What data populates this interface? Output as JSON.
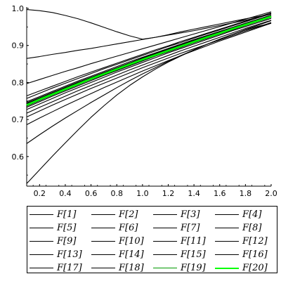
{
  "chart_data": {
    "type": "line",
    "xlim": [
      0.1,
      2.0
    ],
    "ylim": [
      0.52,
      1.0
    ],
    "xticks": [
      "0.2",
      "0.4",
      "0.6",
      "0.8",
      "1.0",
      "1.2",
      "1.4",
      "1.6",
      "1.8",
      "2.0"
    ],
    "yticks": [
      "0.6",
      "0.7",
      "0.8",
      "0.9",
      "1.0"
    ],
    "x": [
      0.1,
      0.2,
      0.3,
      0.4,
      0.5,
      0.6,
      0.7,
      0.8,
      0.9,
      1.0,
      1.1,
      1.2,
      1.3,
      1.4,
      1.5,
      1.6,
      1.7,
      1.8,
      1.9,
      2.0
    ],
    "legend_position": "bottom",
    "series": [
      {
        "name": "F[1]",
        "color": "#000000",
        "values": [
          0.997,
          0.994,
          0.989,
          0.981,
          0.972,
          0.961,
          0.949,
          0.937,
          0.926,
          0.917,
          0.922,
          0.929,
          0.937,
          0.944,
          0.951,
          0.958,
          0.965,
          0.972,
          0.978,
          0.985
        ]
      },
      {
        "name": "F[2]",
        "color": "#000000",
        "values": [
          0.865,
          0.87,
          0.876,
          0.881,
          0.887,
          0.892,
          0.898,
          0.904,
          0.91,
          0.916,
          0.922,
          0.928,
          0.934,
          0.94,
          0.947,
          0.954,
          0.961,
          0.968,
          0.976,
          0.985
        ]
      },
      {
        "name": "F[3]",
        "color": "#000000",
        "values": [
          0.527,
          0.564,
          0.601,
          0.637,
          0.672,
          0.706,
          0.737,
          0.766,
          0.792,
          0.815,
          0.836,
          0.855,
          0.872,
          0.888,
          0.903,
          0.917,
          0.93,
          0.942,
          0.952,
          0.96
        ]
      },
      {
        "name": "F[4]",
        "color": "#000000",
        "values": [
          0.635,
          0.659,
          0.682,
          0.704,
          0.725,
          0.746,
          0.766,
          0.786,
          0.805,
          0.823,
          0.84,
          0.857,
          0.873,
          0.888,
          0.903,
          0.917,
          0.93,
          0.943,
          0.955,
          0.967
        ]
      },
      {
        "name": "F[5]",
        "color": "#000000",
        "values": [
          0.686,
          0.704,
          0.721,
          0.738,
          0.754,
          0.77,
          0.786,
          0.801,
          0.816,
          0.831,
          0.845,
          0.859,
          0.873,
          0.886,
          0.899,
          0.912,
          0.924,
          0.936,
          0.948,
          0.96
        ]
      },
      {
        "name": "F[6]",
        "color": "#000000",
        "values": [
          0.707,
          0.723,
          0.739,
          0.754,
          0.769,
          0.784,
          0.798,
          0.812,
          0.826,
          0.84,
          0.853,
          0.866,
          0.879,
          0.891,
          0.903,
          0.915,
          0.927,
          0.939,
          0.95,
          0.962
        ]
      },
      {
        "name": "F[7]",
        "color": "#000000",
        "values": [
          0.717,
          0.733,
          0.748,
          0.763,
          0.778,
          0.792,
          0.806,
          0.82,
          0.834,
          0.847,
          0.86,
          0.873,
          0.886,
          0.898,
          0.91,
          0.922,
          0.934,
          0.946,
          0.957,
          0.968
        ]
      },
      {
        "name": "F[8]",
        "color": "#000000",
        "values": [
          0.727,
          0.742,
          0.757,
          0.772,
          0.786,
          0.8,
          0.814,
          0.828,
          0.841,
          0.854,
          0.867,
          0.88,
          0.892,
          0.904,
          0.916,
          0.928,
          0.94,
          0.951,
          0.962,
          0.973
        ]
      },
      {
        "name": "F[9]",
        "color": "#000000",
        "values": [
          0.733,
          0.748,
          0.763,
          0.777,
          0.791,
          0.805,
          0.819,
          0.832,
          0.845,
          0.858,
          0.871,
          0.883,
          0.895,
          0.907,
          0.919,
          0.931,
          0.942,
          0.954,
          0.965,
          0.976
        ]
      },
      {
        "name": "F[10]",
        "color": "#000000",
        "values": [
          0.736,
          0.751,
          0.766,
          0.78,
          0.794,
          0.808,
          0.821,
          0.834,
          0.847,
          0.86,
          0.873,
          0.885,
          0.897,
          0.909,
          0.921,
          0.932,
          0.944,
          0.955,
          0.966,
          0.977
        ]
      },
      {
        "name": "F[11]",
        "color": "#000000",
        "values": [
          0.739,
          0.754,
          0.768,
          0.782,
          0.796,
          0.81,
          0.823,
          0.836,
          0.849,
          0.862,
          0.874,
          0.886,
          0.898,
          0.91,
          0.922,
          0.933,
          0.945,
          0.956,
          0.967,
          0.978
        ]
      },
      {
        "name": "F[12]",
        "color": "#000000",
        "values": [
          0.741,
          0.756,
          0.77,
          0.784,
          0.798,
          0.811,
          0.824,
          0.837,
          0.85,
          0.863,
          0.875,
          0.887,
          0.899,
          0.911,
          0.923,
          0.934,
          0.946,
          0.957,
          0.968,
          0.979
        ]
      },
      {
        "name": "F[13]",
        "color": "#000000",
        "values": [
          0.743,
          0.757,
          0.771,
          0.785,
          0.799,
          0.812,
          0.825,
          0.838,
          0.851,
          0.864,
          0.876,
          0.888,
          0.9,
          0.912,
          0.924,
          0.935,
          0.947,
          0.958,
          0.969,
          0.98
        ]
      },
      {
        "name": "F[14]",
        "color": "#000000",
        "values": [
          0.748,
          0.762,
          0.776,
          0.79,
          0.804,
          0.817,
          0.83,
          0.843,
          0.856,
          0.868,
          0.88,
          0.892,
          0.904,
          0.916,
          0.927,
          0.938,
          0.949,
          0.96,
          0.971,
          0.982
        ]
      },
      {
        "name": "F[15]",
        "color": "#000000",
        "values": [
          0.757,
          0.771,
          0.785,
          0.798,
          0.811,
          0.824,
          0.837,
          0.849,
          0.861,
          0.873,
          0.885,
          0.897,
          0.908,
          0.92,
          0.931,
          0.942,
          0.953,
          0.964,
          0.975,
          0.986
        ]
      },
      {
        "name": "F[16]",
        "color": "#000000",
        "values": [
          0.764,
          0.777,
          0.79,
          0.803,
          0.816,
          0.828,
          0.84,
          0.852,
          0.864,
          0.876,
          0.888,
          0.899,
          0.911,
          0.922,
          0.933,
          0.944,
          0.955,
          0.966,
          0.977,
          0.988
        ]
      },
      {
        "name": "F[17]",
        "color": "#000000",
        "values": [
          0.797,
          0.808,
          0.819,
          0.83,
          0.84,
          0.851,
          0.861,
          0.871,
          0.881,
          0.891,
          0.901,
          0.911,
          0.921,
          0.931,
          0.941,
          0.951,
          0.961,
          0.971,
          0.981,
          0.991
        ]
      },
      {
        "name": "F[18]",
        "color": "#000000",
        "values": [
          0.745,
          0.759,
          0.773,
          0.787,
          0.801,
          0.814,
          0.827,
          0.84,
          0.853,
          0.866,
          0.878,
          0.89,
          0.902,
          0.914,
          0.925,
          0.936,
          0.947,
          0.958,
          0.969,
          0.98
        ]
      },
      {
        "name": "F[19]",
        "color": "#009900",
        "values": [
          0.739,
          0.754,
          0.768,
          0.782,
          0.796,
          0.81,
          0.823,
          0.836,
          0.849,
          0.862,
          0.874,
          0.886,
          0.898,
          0.91,
          0.922,
          0.933,
          0.945,
          0.956,
          0.967,
          0.978
        ]
      },
      {
        "name": "F[20]",
        "color": "#00ff00",
        "values": [
          0.739,
          0.754,
          0.768,
          0.782,
          0.796,
          0.81,
          0.823,
          0.836,
          0.849,
          0.862,
          0.874,
          0.886,
          0.898,
          0.91,
          0.922,
          0.933,
          0.945,
          0.956,
          0.967,
          0.978
        ]
      }
    ]
  }
}
